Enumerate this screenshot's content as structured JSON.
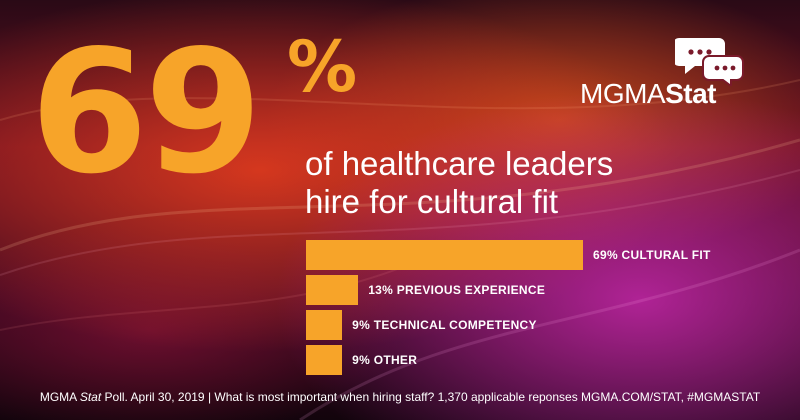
{
  "hero": {
    "number": "69",
    "percent_sign": "%"
  },
  "headline": {
    "line1": "of healthcare leaders",
    "line2": "hire for cultural fit"
  },
  "logo": {
    "part1": "MGMA",
    "part2": "Stat"
  },
  "footer": {
    "prefix": "MGMA ",
    "italic": "Stat",
    "text": " Poll. April 30, 2019 | What is most important when hiring staff? 1,370 applicable reponses MGMA.COM/STAT, #MGMASTAT"
  },
  "colors": {
    "accent": "#f7a429",
    "text": "#ffffff"
  },
  "chart_data": {
    "type": "bar",
    "orientation": "horizontal",
    "categories": [
      "CULTURAL FIT",
      "PREVIOUS EXPERIENCE",
      "TECHNICAL COMPETENCY",
      "OTHER"
    ],
    "values": [
      69,
      13,
      9,
      9
    ],
    "labels": [
      "69% CULTURAL FIT",
      "13% PREVIOUS EXPERIENCE",
      "9% TECHNICAL COMPETENCY",
      "9% OTHER"
    ],
    "unit": "%",
    "grid": false,
    "axes": false,
    "bar_color": "#f7a429"
  }
}
